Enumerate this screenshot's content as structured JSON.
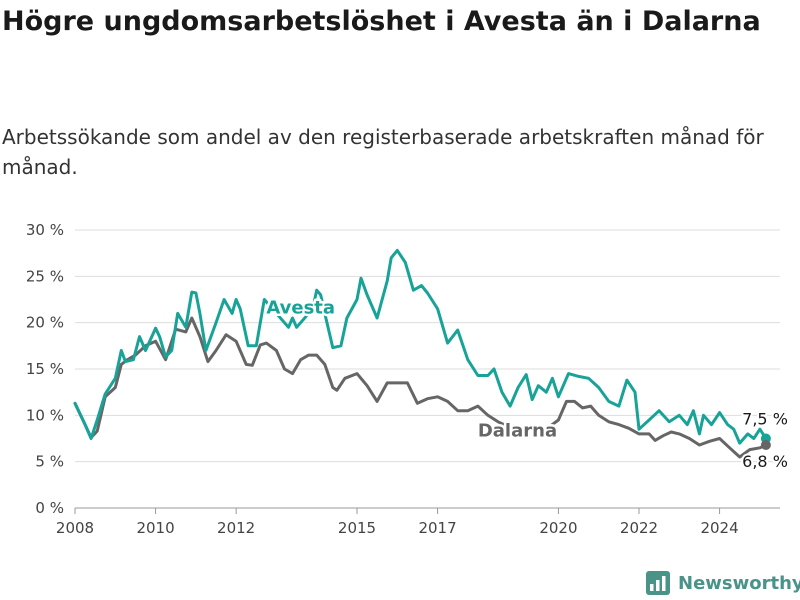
{
  "header": {
    "title": "Högre ungdomsarbetslöshet i Avesta än i Dalarna",
    "subtitle": "Arbetssökande som andel av den registerbaserade arbetskraften månad för månad."
  },
  "brand": {
    "name": "Newsworthy",
    "icon": "bar-chart-logo-icon",
    "color": "#4a9389"
  },
  "chart_data": {
    "type": "line",
    "title": "Högre ungdomsarbetslöshet i Avesta än i Dalarna",
    "subtitle": "Arbetssökande som andel av den registerbaserade arbetskraften månad för månad.",
    "ylim": [
      0,
      30
    ],
    "y_ticks": [
      0,
      5,
      10,
      15,
      20,
      25,
      30
    ],
    "y_tick_labels": [
      "0 %",
      "5 %",
      "10 %",
      "15 %",
      "20 %",
      "25 %",
      "30 %"
    ],
    "x_ticks": [
      2008,
      2010,
      2012,
      2015,
      2017,
      2020,
      2022,
      2024
    ],
    "x_tick_labels": [
      "2008",
      "2010",
      "2012",
      "2015",
      "2017",
      "2020",
      "2022",
      "2024"
    ],
    "grid": "horizontal",
    "series": [
      {
        "name": "Avesta",
        "color": "#17a398",
        "end_label": "7,5 %",
        "label_position": "on-line",
        "points": [
          [
            2008.0,
            11.3
          ],
          [
            2008.25,
            9.0
          ],
          [
            2008.4,
            7.5
          ],
          [
            2008.55,
            9.5
          ],
          [
            2008.75,
            12.3
          ],
          [
            2009.0,
            14.0
          ],
          [
            2009.15,
            17.0
          ],
          [
            2009.25,
            15.8
          ],
          [
            2009.45,
            16.0
          ],
          [
            2009.6,
            18.5
          ],
          [
            2009.75,
            17.0
          ],
          [
            2010.0,
            19.4
          ],
          [
            2010.1,
            18.5
          ],
          [
            2010.25,
            16.3
          ],
          [
            2010.4,
            17.0
          ],
          [
            2010.55,
            21.0
          ],
          [
            2010.75,
            19.5
          ],
          [
            2010.9,
            23.3
          ],
          [
            2011.0,
            23.2
          ],
          [
            2011.1,
            21.0
          ],
          [
            2011.25,
            17.0
          ],
          [
            2011.5,
            20.0
          ],
          [
            2011.7,
            22.5
          ],
          [
            2011.9,
            21.0
          ],
          [
            2012.0,
            22.5
          ],
          [
            2012.1,
            21.5
          ],
          [
            2012.3,
            17.5
          ],
          [
            2012.5,
            17.5
          ],
          [
            2012.7,
            22.5
          ],
          [
            2013.3,
            19.5
          ],
          [
            2013.4,
            20.5
          ],
          [
            2013.5,
            19.5
          ],
          [
            2013.9,
            21.5
          ],
          [
            2014.0,
            23.5
          ],
          [
            2014.1,
            23.0
          ],
          [
            2014.2,
            21.0
          ],
          [
            2014.4,
            17.3
          ],
          [
            2014.6,
            17.5
          ],
          [
            2014.75,
            20.5
          ],
          [
            2015.0,
            22.5
          ],
          [
            2015.1,
            24.8
          ],
          [
            2015.25,
            23.0
          ],
          [
            2015.5,
            20.5
          ],
          [
            2015.75,
            24.5
          ],
          [
            2015.85,
            27.0
          ],
          [
            2016.0,
            27.8
          ],
          [
            2016.2,
            26.5
          ],
          [
            2016.4,
            23.5
          ],
          [
            2016.6,
            24.0
          ],
          [
            2016.75,
            23.2
          ],
          [
            2017.0,
            21.5
          ],
          [
            2017.25,
            17.8
          ],
          [
            2017.5,
            19.2
          ],
          [
            2017.75,
            16.0
          ],
          [
            2018.0,
            14.3
          ],
          [
            2018.25,
            14.3
          ],
          [
            2018.4,
            15.0
          ],
          [
            2018.6,
            12.5
          ],
          [
            2018.8,
            11.0
          ],
          [
            2019.0,
            13.0
          ],
          [
            2019.2,
            14.4
          ],
          [
            2019.35,
            11.7
          ],
          [
            2019.5,
            13.2
          ],
          [
            2019.7,
            12.5
          ],
          [
            2019.85,
            14.0
          ],
          [
            2020.0,
            12.0
          ],
          [
            2020.25,
            14.5
          ],
          [
            2020.5,
            14.2
          ],
          [
            2020.75,
            14.0
          ],
          [
            2021.0,
            13.0
          ],
          [
            2021.25,
            11.5
          ],
          [
            2021.5,
            11.0
          ],
          [
            2021.7,
            13.8
          ],
          [
            2021.9,
            12.5
          ],
          [
            2022.0,
            8.5
          ],
          [
            2022.25,
            9.5
          ],
          [
            2022.5,
            10.5
          ],
          [
            2022.75,
            9.3
          ],
          [
            2023.0,
            10.0
          ],
          [
            2023.2,
            9.0
          ],
          [
            2023.35,
            10.5
          ],
          [
            2023.5,
            8.0
          ],
          [
            2023.6,
            10.0
          ],
          [
            2023.8,
            9.0
          ],
          [
            2024.0,
            10.3
          ],
          [
            2024.2,
            9.0
          ],
          [
            2024.35,
            8.5
          ],
          [
            2024.5,
            7.0
          ],
          [
            2024.7,
            8.0
          ],
          [
            2024.85,
            7.5
          ],
          [
            2025.0,
            8.5
          ],
          [
            2025.15,
            7.5
          ]
        ]
      },
      {
        "name": "Dalarna",
        "color": "#666666",
        "end_label": "6,8 %",
        "label_position": "on-line",
        "points": [
          [
            2008.0,
            11.3
          ],
          [
            2008.25,
            9.0
          ],
          [
            2008.4,
            7.6
          ],
          [
            2008.55,
            8.3
          ],
          [
            2008.75,
            12.0
          ],
          [
            2009.0,
            13.0
          ],
          [
            2009.15,
            15.5
          ],
          [
            2009.3,
            16.0
          ],
          [
            2009.5,
            16.5
          ],
          [
            2009.75,
            17.5
          ],
          [
            2010.0,
            18.0
          ],
          [
            2010.25,
            16.0
          ],
          [
            2010.5,
            19.3
          ],
          [
            2010.75,
            19.0
          ],
          [
            2010.9,
            20.5
          ],
          [
            2011.1,
            18.5
          ],
          [
            2011.3,
            15.8
          ],
          [
            2011.5,
            17.0
          ],
          [
            2011.75,
            18.7
          ],
          [
            2012.0,
            18.0
          ],
          [
            2012.25,
            15.5
          ],
          [
            2012.4,
            15.4
          ],
          [
            2012.6,
            17.6
          ],
          [
            2012.75,
            17.8
          ],
          [
            2013.0,
            17.0
          ],
          [
            2013.2,
            15.0
          ],
          [
            2013.4,
            14.5
          ],
          [
            2013.6,
            16.0
          ],
          [
            2013.8,
            16.5
          ],
          [
            2014.0,
            16.5
          ],
          [
            2014.2,
            15.5
          ],
          [
            2014.4,
            13.0
          ],
          [
            2014.5,
            12.7
          ],
          [
            2014.7,
            14.0
          ],
          [
            2015.0,
            14.5
          ],
          [
            2015.25,
            13.2
          ],
          [
            2015.5,
            11.5
          ],
          [
            2015.75,
            13.5
          ],
          [
            2016.0,
            13.5
          ],
          [
            2016.25,
            13.5
          ],
          [
            2016.5,
            11.3
          ],
          [
            2016.75,
            11.8
          ],
          [
            2017.0,
            12.0
          ],
          [
            2017.25,
            11.5
          ],
          [
            2017.5,
            10.5
          ],
          [
            2017.75,
            10.5
          ],
          [
            2018.0,
            11.0
          ],
          [
            2018.25,
            10.0
          ],
          [
            2018.5,
            9.3
          ],
          [
            2018.75,
            8.8
          ],
          [
            2019.0,
            8.5
          ],
          [
            2019.25,
            8.5
          ],
          [
            2019.5,
            8.5
          ],
          [
            2019.75,
            8.7
          ],
          [
            2020.0,
            9.5
          ],
          [
            2020.2,
            11.5
          ],
          [
            2020.4,
            11.5
          ],
          [
            2020.6,
            10.8
          ],
          [
            2020.8,
            11.0
          ],
          [
            2021.0,
            10.0
          ],
          [
            2021.25,
            9.3
          ],
          [
            2021.5,
            9.0
          ],
          [
            2021.75,
            8.6
          ],
          [
            2022.0,
            8.0
          ],
          [
            2022.25,
            8.0
          ],
          [
            2022.4,
            7.3
          ],
          [
            2022.6,
            7.8
          ],
          [
            2022.8,
            8.2
          ],
          [
            2023.0,
            8.0
          ],
          [
            2023.25,
            7.5
          ],
          [
            2023.5,
            6.8
          ],
          [
            2023.75,
            7.2
          ],
          [
            2024.0,
            7.5
          ],
          [
            2024.25,
            6.5
          ],
          [
            2024.5,
            5.5
          ],
          [
            2024.75,
            6.3
          ],
          [
            2025.0,
            6.5
          ],
          [
            2025.15,
            6.8
          ]
        ]
      }
    ]
  }
}
